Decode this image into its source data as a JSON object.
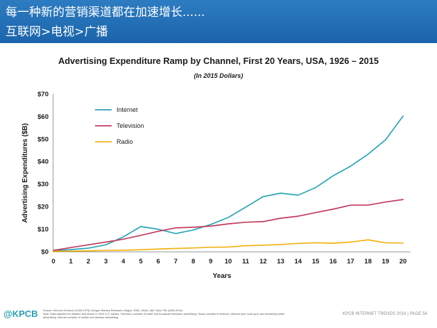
{
  "header": {
    "title": "每一种新的营销渠道都在加速增长......",
    "subtitle": "互联网>电视>广播"
  },
  "chart_data": {
    "type": "line",
    "title": "Advertising Expenditure Ramp by Channel, First 20 Years, USA, 1926 – 2015",
    "subtitle": "(In 2015 Dollars)",
    "xlabel": "Years",
    "ylabel": "Advertising Expenditures ($B)",
    "x": [
      0,
      1,
      2,
      3,
      4,
      5,
      6,
      7,
      8,
      9,
      10,
      11,
      12,
      13,
      14,
      15,
      16,
      17,
      18,
      19,
      20
    ],
    "xlim": [
      0,
      20
    ],
    "ylim": [
      0,
      70
    ],
    "y_ticks": [
      {
        "value": 0,
        "label": "$0"
      },
      {
        "value": 10,
        "label": "$10"
      },
      {
        "value": 20,
        "label": "$20"
      },
      {
        "value": 30,
        "label": "$30"
      },
      {
        "value": 40,
        "label": "$40"
      },
      {
        "value": 50,
        "label": "$50"
      },
      {
        "value": 60,
        "label": "$60"
      },
      {
        "value": 70,
        "label": "$70"
      }
    ],
    "grid": false,
    "legend_position": "top-left",
    "series": [
      {
        "name": "Internet",
        "color": "#2aa5b4",
        "values": [
          0.3,
          0.9,
          1.5,
          3.0,
          6.5,
          11.1,
          9.9,
          8.0,
          9.6,
          12.0,
          15.1,
          19.7,
          24.4,
          25.9,
          25.0,
          28.4,
          33.6,
          37.9,
          43.2,
          49.6,
          60.1
        ]
      },
      {
        "name": "Television",
        "color": "#c23a5e",
        "values": [
          0.5,
          1.8,
          3.0,
          4.2,
          5.5,
          7.2,
          9.0,
          10.5,
          10.8,
          11.3,
          12.3,
          13.0,
          13.3,
          14.8,
          15.7,
          17.3,
          18.8,
          20.6,
          20.6,
          22.0,
          23.1
        ]
      },
      {
        "name": "Radio",
        "color": "#f2b414",
        "values": [
          0.1,
          0.2,
          0.3,
          0.5,
          0.6,
          0.8,
          1.1,
          1.4,
          1.6,
          1.9,
          2.0,
          2.6,
          2.8,
          3.1,
          3.6,
          3.9,
          3.7,
          4.2,
          5.2,
          3.9,
          3.8
        ]
      }
    ]
  },
  "footer": {
    "logo": "@KPCB",
    "notes": [
      "Source: McCann Erickson (1926-1979); Morgan Stanley Research, Magna, RAB, OAAA, IAB, NAA, PBI (1980-2015).",
      "Note: Data adjusted for inflation and shown in 2015 U.S. dollars. Television consists of cable and broadcast television advertising. Radio consists of network, national spot, local spot, and streaming audio",
      "advertising. Internet consists of mobile and desktop advertising."
    ],
    "page_label": "KPCB INTERNET TRENDS 2016 | PAGE 54"
  }
}
